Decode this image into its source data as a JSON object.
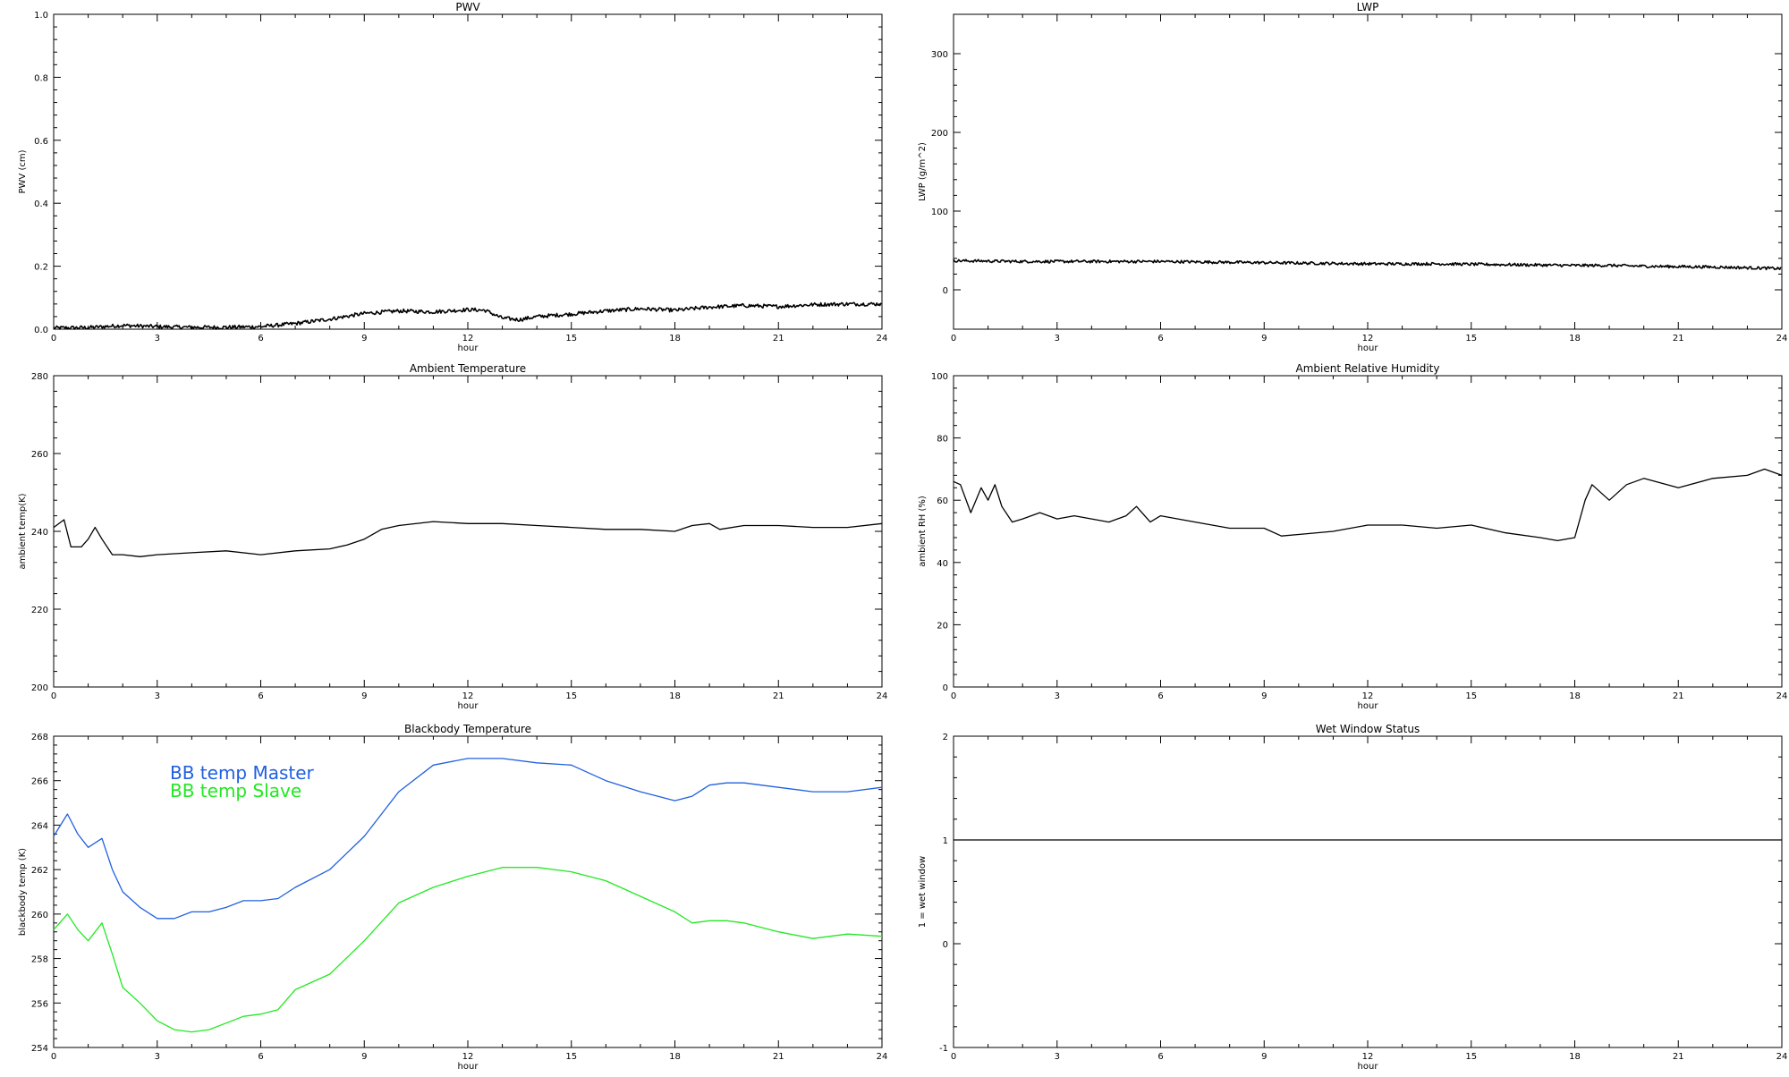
{
  "figure": {
    "background": "#ffffff",
    "axis_color": "#000000"
  },
  "chart_data": [
    {
      "id": "pwv",
      "type": "line",
      "title": "PWV",
      "xlabel": "hour",
      "ylabel": "PWV (cm)",
      "xlim": [
        0,
        24
      ],
      "ylim": [
        0,
        1.0
      ],
      "xticks": [
        0,
        3,
        6,
        9,
        12,
        15,
        18,
        21,
        24
      ],
      "yticks": [
        "0.0",
        "0.2",
        "0.4",
        "0.6",
        "0.8",
        "1.0"
      ],
      "legend": "none",
      "series": [
        {
          "color": "#000000",
          "noise": 0.006,
          "x": [
            0,
            1,
            2,
            3,
            4,
            5,
            6,
            7,
            8,
            9,
            10,
            11,
            12,
            12.5,
            13,
            13.5,
            14,
            15,
            16,
            17,
            18,
            19,
            20,
            21,
            22,
            23,
            24
          ],
          "y": [
            0.004,
            0.005,
            0.012,
            0.008,
            0.006,
            0.006,
            0.008,
            0.018,
            0.032,
            0.05,
            0.058,
            0.055,
            0.062,
            0.06,
            0.035,
            0.03,
            0.04,
            0.048,
            0.058,
            0.065,
            0.06,
            0.07,
            0.075,
            0.072,
            0.078,
            0.08,
            0.08
          ]
        }
      ]
    },
    {
      "id": "lwp",
      "type": "line",
      "title": "LWP",
      "xlabel": "hour",
      "ylabel": "LWP (g/m^2)",
      "xlim": [
        0,
        24
      ],
      "ylim": [
        -50,
        350
      ],
      "xticks": [
        0,
        3,
        6,
        9,
        12,
        15,
        18,
        21,
        24
      ],
      "yticks": [
        "0",
        "100",
        "200",
        "300"
      ],
      "legend": "none",
      "series": [
        {
          "color": "#000000",
          "noise": 1.8,
          "x": [
            0,
            2,
            4,
            6,
            8,
            10,
            12,
            14,
            16,
            18,
            19,
            20,
            22,
            24
          ],
          "y": [
            37,
            36,
            36,
            36,
            35,
            34,
            33,
            33,
            32,
            31,
            31,
            30,
            29,
            27
          ]
        }
      ]
    },
    {
      "id": "ambient-temperature",
      "type": "line",
      "title": "Ambient Temperature",
      "xlabel": "hour",
      "ylabel": "ambient temp(K)",
      "xlim": [
        0,
        24
      ],
      "ylim": [
        200,
        280
      ],
      "xticks": [
        0,
        3,
        6,
        9,
        12,
        15,
        18,
        21,
        24
      ],
      "yticks": [
        "200",
        "220",
        "240",
        "260",
        "280"
      ],
      "legend": "none",
      "series": [
        {
          "color": "#000000",
          "noise": 0,
          "x": [
            0,
            0.3,
            0.5,
            0.8,
            1.0,
            1.2,
            1.4,
            1.7,
            2.0,
            2.5,
            3,
            4,
            5,
            6,
            7,
            8,
            8.5,
            9,
            9.5,
            10,
            11,
            12,
            13,
            14,
            15,
            16,
            17,
            18,
            18.5,
            19,
            19.3,
            20,
            21,
            22,
            23,
            24
          ],
          "y": [
            241,
            243,
            236,
            236,
            238,
            241,
            238,
            234,
            234,
            233.5,
            234,
            234.5,
            235,
            234,
            235,
            235.5,
            236.5,
            238,
            240.5,
            241.5,
            242.5,
            242,
            242,
            241.5,
            241,
            240.5,
            240.5,
            240,
            241.5,
            242,
            240.5,
            241.5,
            241.5,
            241,
            241,
            242
          ]
        }
      ]
    },
    {
      "id": "ambient-relative-humidity",
      "type": "line",
      "title": "Ambient Relative Humidity",
      "xlabel": "hour",
      "ylabel": "ambient RH (%)",
      "xlim": [
        0,
        24
      ],
      "ylim": [
        0,
        100
      ],
      "xticks": [
        0,
        3,
        6,
        9,
        12,
        15,
        18,
        21,
        24
      ],
      "yticks": [
        "0",
        "20",
        "40",
        "60",
        "80",
        "100"
      ],
      "legend": "none",
      "series": [
        {
          "color": "#000000",
          "noise": 0,
          "x": [
            0,
            0.2,
            0.5,
            0.8,
            1.0,
            1.2,
            1.4,
            1.7,
            2.0,
            2.5,
            3,
            3.5,
            4,
            4.5,
            5,
            5.3,
            5.7,
            6,
            7,
            8,
            9,
            9.5,
            10,
            11,
            12,
            13,
            14,
            15,
            16,
            17,
            17.5,
            18,
            18.3,
            18.5,
            19,
            19.5,
            20,
            21,
            22,
            23,
            23.5,
            24
          ],
          "y": [
            66,
            65,
            56,
            64,
            60,
            65,
            58,
            53,
            54,
            56,
            54,
            55,
            54,
            53,
            55,
            58,
            53,
            55,
            53,
            51,
            51,
            48.5,
            49,
            50,
            52,
            52,
            51,
            52,
            49.5,
            48,
            47,
            48,
            60,
            65,
            60,
            65,
            67,
            64,
            67,
            68,
            70,
            68
          ]
        }
      ]
    },
    {
      "id": "blackbody-temperature",
      "type": "line",
      "title": "Blackbody Temperature",
      "xlabel": "hour",
      "ylabel": "blackbody temp (K)",
      "xlim": [
        0,
        24
      ],
      "ylim": [
        254,
        268
      ],
      "xticks": [
        0,
        3,
        6,
        9,
        12,
        15,
        18,
        21,
        24
      ],
      "yticks": [
        "254",
        "256",
        "258",
        "260",
        "262",
        "264",
        "266",
        "268"
      ],
      "legend": "top-left",
      "series": [
        {
          "name": "BB temp Master",
          "color": "#2060e0",
          "noise": 0,
          "x": [
            0,
            0.4,
            0.7,
            1.0,
            1.4,
            1.7,
            2.0,
            2.5,
            3,
            3.5,
            4,
            4.5,
            5,
            5.5,
            6,
            6.5,
            7,
            8,
            9,
            10,
            11,
            12,
            13,
            14,
            15,
            16,
            17,
            18,
            18.5,
            19,
            19.5,
            20,
            21,
            22,
            23,
            24
          ],
          "y": [
            263.5,
            264.5,
            263.6,
            263,
            263.4,
            262,
            261,
            260.3,
            259.8,
            259.8,
            260.1,
            260.1,
            260.3,
            260.6,
            260.6,
            260.7,
            261.2,
            262,
            263.5,
            265.5,
            266.7,
            267,
            267,
            266.8,
            266.7,
            266,
            265.5,
            265.1,
            265.3,
            265.8,
            265.9,
            265.9,
            265.7,
            265.5,
            265.5,
            265.7
          ]
        },
        {
          "name": "BB temp Slave",
          "color": "#22e822",
          "noise": 0,
          "x": [
            0,
            0.4,
            0.7,
            1.0,
            1.4,
            1.7,
            2.0,
            2.5,
            3,
            3.5,
            4,
            4.5,
            5,
            5.5,
            6,
            6.5,
            7,
            8,
            9,
            10,
            11,
            12,
            13,
            14,
            15,
            16,
            17,
            18,
            18.5,
            19,
            19.5,
            20,
            21,
            22,
            23,
            24
          ],
          "y": [
            259.3,
            260,
            259.3,
            258.8,
            259.6,
            258.2,
            256.7,
            256,
            255.2,
            254.8,
            254.7,
            254.8,
            255.1,
            255.4,
            255.5,
            255.7,
            256.6,
            257.3,
            258.8,
            260.5,
            261.2,
            261.7,
            262.1,
            262.1,
            261.9,
            261.5,
            260.8,
            260.1,
            259.6,
            259.7,
            259.7,
            259.6,
            259.2,
            258.9,
            259.1,
            259
          ]
        }
      ]
    },
    {
      "id": "wet-window-status",
      "type": "line",
      "title": "Wet Window Status",
      "xlabel": "hour",
      "ylabel": "1 = wet window",
      "xlim": [
        0,
        24
      ],
      "ylim": [
        -1,
        2
      ],
      "xticks": [
        0,
        3,
        6,
        9,
        12,
        15,
        18,
        21,
        24
      ],
      "yticks": [
        "-1",
        "0",
        "1",
        "2"
      ],
      "legend": "none",
      "series": [
        {
          "color": "#000000",
          "noise": 0,
          "x": [
            0,
            24
          ],
          "y": [
            1,
            1
          ]
        }
      ]
    }
  ]
}
